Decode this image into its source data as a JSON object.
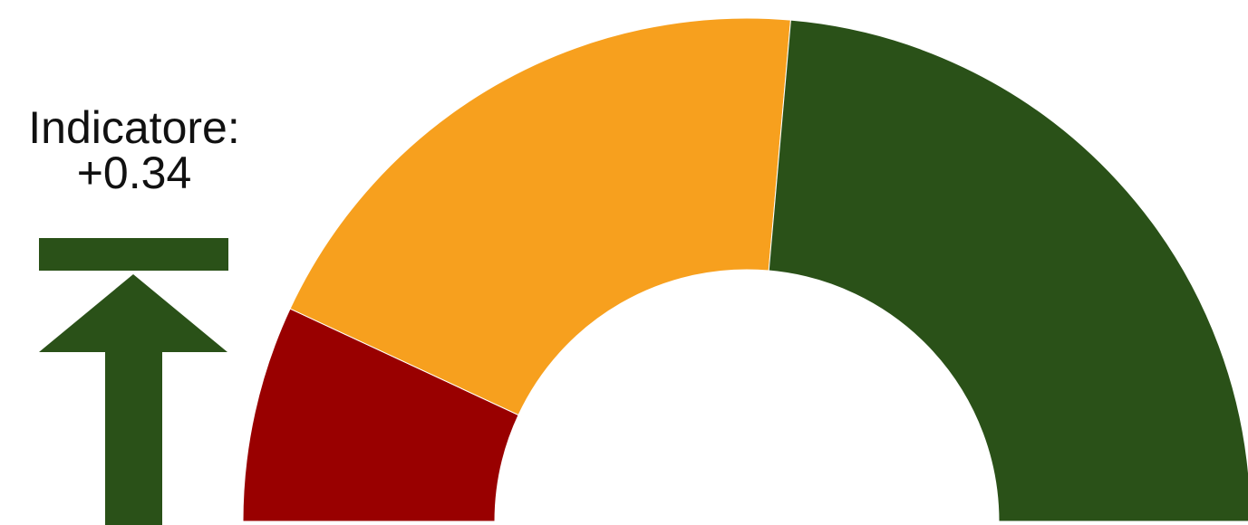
{
  "indicator": {
    "label": "Indicatore:",
    "value_text": "+0.34",
    "arrow_icon": "arrow-up-to-bar-icon",
    "arrow_color": "#2a5118"
  },
  "chart_data": {
    "type": "gauge",
    "min": 0,
    "max": 180,
    "segments": [
      {
        "from": 0,
        "to": 25,
        "color": "#990000"
      },
      {
        "from": 25,
        "to": 95,
        "color": "#f7a01e"
      },
      {
        "from": 95,
        "to": 180,
        "color": "#2a5118"
      }
    ]
  }
}
